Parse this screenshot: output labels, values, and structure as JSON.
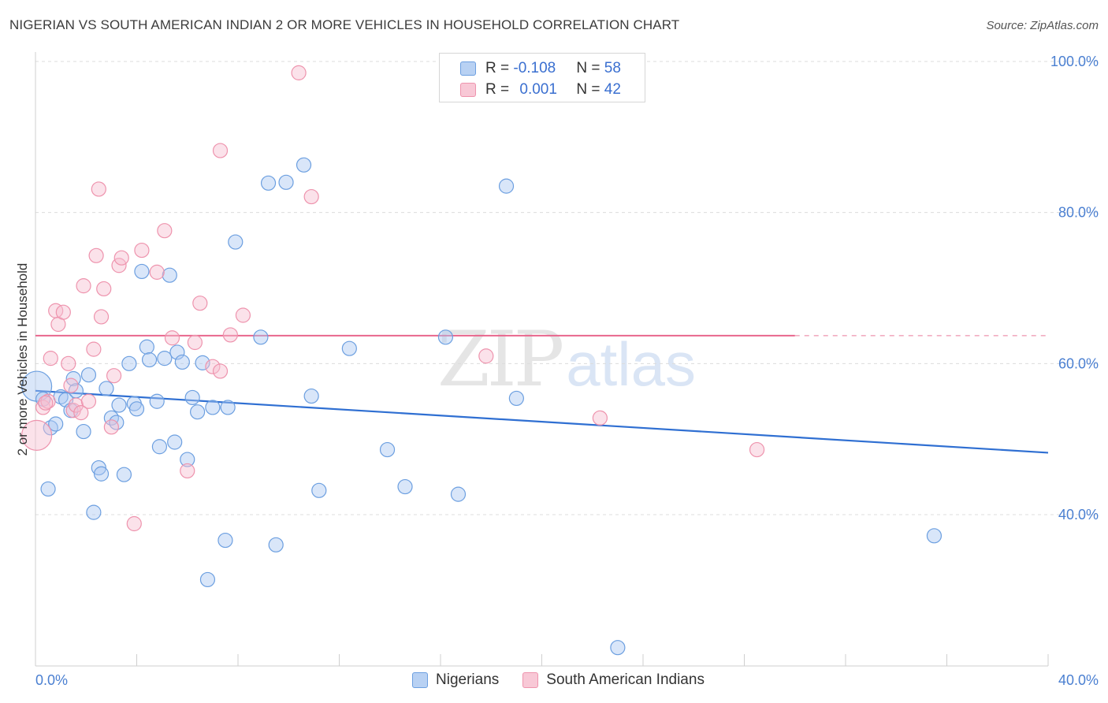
{
  "title": "NIGERIAN VS SOUTH AMERICAN INDIAN 2 OR MORE VEHICLES IN HOUSEHOLD CORRELATION CHART",
  "source": "Source: ZipAtlas.com",
  "watermark": {
    "zip": "ZIP",
    "atlas": "atlas"
  },
  "legend": {
    "rows": [
      {
        "r_label": "R = ",
        "r_value": "-0.108",
        "n_label": "N = ",
        "n_value": "58"
      },
      {
        "r_label": "R = ",
        "r_value": "0.001",
        "n_label": "N = ",
        "n_value": "42"
      }
    ]
  },
  "bottom_legend": {
    "series1": "Nigerians",
    "series2": "South American Indians"
  },
  "chart_data": {
    "type": "scatter",
    "title": "NIGERIAN VS SOUTH AMERICAN INDIAN 2 OR MORE VEHICLES IN HOUSEHOLD CORRELATION CHART",
    "xlabel": "",
    "ylabel": "2 or more Vehicles in Household",
    "xlim": [
      0,
      40
    ],
    "ylim": [
      22,
      102
    ],
    "x_tick_labels": [
      "0.0%",
      "40.0%"
    ],
    "y_ticks": [
      40,
      60,
      80,
      100
    ],
    "y_tick_labels": [
      "40.0%",
      "60.0%",
      "80.0%",
      "100.0%"
    ],
    "colors": {
      "nigerians": "#6c9fe0",
      "south_american_indians": "#ee93ad",
      "blue_line": "#2f6fd2",
      "pink_line": "#e8668d"
    },
    "series": [
      {
        "name": "Nigerians",
        "trend": {
          "x": [
            0,
            40
          ],
          "y": [
            56.4,
            48.2
          ],
          "dashed_from": null
        },
        "points": [
          {
            "x": 0.05,
            "y": 57.0,
            "big": true
          },
          {
            "x": 0.3,
            "y": 55.3
          },
          {
            "x": 0.5,
            "y": 43.4
          },
          {
            "x": 0.6,
            "y": 51.5
          },
          {
            "x": 0.8,
            "y": 52.0
          },
          {
            "x": 1.0,
            "y": 55.6
          },
          {
            "x": 1.2,
            "y": 55.2
          },
          {
            "x": 1.4,
            "y": 53.8
          },
          {
            "x": 1.5,
            "y": 58.0
          },
          {
            "x": 1.6,
            "y": 56.4
          },
          {
            "x": 1.9,
            "y": 51.0
          },
          {
            "x": 2.1,
            "y": 58.5
          },
          {
            "x": 2.3,
            "y": 40.3
          },
          {
            "x": 2.5,
            "y": 46.2
          },
          {
            "x": 2.6,
            "y": 45.4
          },
          {
            "x": 2.8,
            "y": 56.7
          },
          {
            "x": 3.0,
            "y": 52.8
          },
          {
            "x": 3.2,
            "y": 52.2
          },
          {
            "x": 3.3,
            "y": 54.5
          },
          {
            "x": 3.5,
            "y": 45.3
          },
          {
            "x": 3.7,
            "y": 60.0
          },
          {
            "x": 3.9,
            "y": 54.7
          },
          {
            "x": 4.0,
            "y": 54.0
          },
          {
            "x": 4.2,
            "y": 72.2
          },
          {
            "x": 4.4,
            "y": 62.2
          },
          {
            "x": 4.5,
            "y": 60.5
          },
          {
            "x": 4.8,
            "y": 55.0
          },
          {
            "x": 4.9,
            "y": 49.0
          },
          {
            "x": 5.1,
            "y": 60.7
          },
          {
            "x": 5.3,
            "y": 71.7
          },
          {
            "x": 5.5,
            "y": 49.6
          },
          {
            "x": 5.6,
            "y": 61.5
          },
          {
            "x": 5.8,
            "y": 60.2
          },
          {
            "x": 6.0,
            "y": 47.3
          },
          {
            "x": 6.2,
            "y": 55.5
          },
          {
            "x": 6.4,
            "y": 53.6
          },
          {
            "x": 6.6,
            "y": 60.1
          },
          {
            "x": 6.8,
            "y": 31.4
          },
          {
            "x": 7.0,
            "y": 54.2
          },
          {
            "x": 7.5,
            "y": 36.6
          },
          {
            "x": 7.6,
            "y": 54.2
          },
          {
            "x": 7.9,
            "y": 76.1
          },
          {
            "x": 8.9,
            "y": 63.5
          },
          {
            "x": 9.2,
            "y": 83.9
          },
          {
            "x": 9.5,
            "y": 36.0
          },
          {
            "x": 9.9,
            "y": 84.0
          },
          {
            "x": 10.6,
            "y": 86.3
          },
          {
            "x": 10.9,
            "y": 55.7
          },
          {
            "x": 11.2,
            "y": 43.2
          },
          {
            "x": 12.4,
            "y": 62.0
          },
          {
            "x": 13.9,
            "y": 48.6
          },
          {
            "x": 14.6,
            "y": 43.7
          },
          {
            "x": 16.2,
            "y": 63.5
          },
          {
            "x": 16.7,
            "y": 42.7
          },
          {
            "x": 18.6,
            "y": 83.5
          },
          {
            "x": 19.0,
            "y": 55.4
          },
          {
            "x": 23.0,
            "y": 22.4
          },
          {
            "x": 35.5,
            "y": 37.2
          }
        ]
      },
      {
        "name": "South American Indians",
        "trend": {
          "x": [
            0,
            40
          ],
          "y": [
            63.7,
            63.7
          ],
          "dashed_from": 30
        },
        "points": [
          {
            "x": 0.05,
            "y": 50.5,
            "big": true
          },
          {
            "x": 0.3,
            "y": 54.2
          },
          {
            "x": 0.5,
            "y": 55.0
          },
          {
            "x": 0.6,
            "y": 60.7
          },
          {
            "x": 0.8,
            "y": 67.0
          },
          {
            "x": 0.9,
            "y": 65.2
          },
          {
            "x": 1.1,
            "y": 66.8
          },
          {
            "x": 1.3,
            "y": 60.0
          },
          {
            "x": 1.4,
            "y": 57.1
          },
          {
            "x": 1.5,
            "y": 53.8
          },
          {
            "x": 1.6,
            "y": 54.5
          },
          {
            "x": 1.8,
            "y": 53.5
          },
          {
            "x": 1.9,
            "y": 70.3
          },
          {
            "x": 2.1,
            "y": 55.0
          },
          {
            "x": 2.3,
            "y": 61.9
          },
          {
            "x": 2.4,
            "y": 74.3
          },
          {
            "x": 2.5,
            "y": 83.1
          },
          {
            "x": 2.6,
            "y": 66.2
          },
          {
            "x": 2.7,
            "y": 69.9
          },
          {
            "x": 3.0,
            "y": 51.6
          },
          {
            "x": 3.1,
            "y": 58.4
          },
          {
            "x": 3.3,
            "y": 73.0
          },
          {
            "x": 3.4,
            "y": 74.0
          },
          {
            "x": 3.9,
            "y": 38.8
          },
          {
            "x": 4.2,
            "y": 75.0
          },
          {
            "x": 4.8,
            "y": 72.1
          },
          {
            "x": 5.1,
            "y": 77.6
          },
          {
            "x": 5.4,
            "y": 63.4
          },
          {
            "x": 6.0,
            "y": 45.8
          },
          {
            "x": 6.3,
            "y": 62.8
          },
          {
            "x": 6.5,
            "y": 68.0
          },
          {
            "x": 7.0,
            "y": 59.6
          },
          {
            "x": 7.3,
            "y": 88.2
          },
          {
            "x": 7.3,
            "y": 59.0
          },
          {
            "x": 7.7,
            "y": 63.8
          },
          {
            "x": 8.2,
            "y": 66.4
          },
          {
            "x": 10.4,
            "y": 98.5
          },
          {
            "x": 10.9,
            "y": 82.1
          },
          {
            "x": 17.8,
            "y": 61.0
          },
          {
            "x": 22.3,
            "y": 52.8
          },
          {
            "x": 28.5,
            "y": 48.6
          },
          {
            "x": 0.4,
            "y": 54.8
          }
        ]
      }
    ]
  }
}
